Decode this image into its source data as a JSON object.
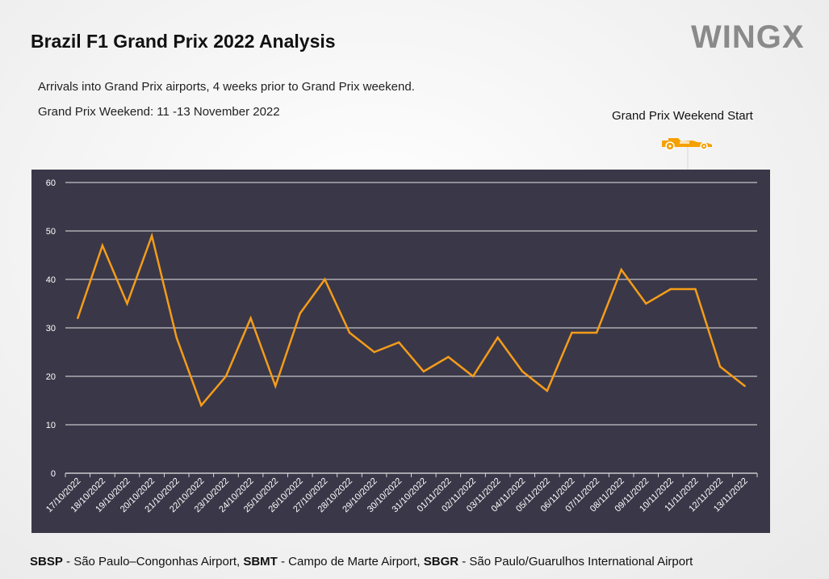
{
  "title": "Brazil F1 Grand Prix 2022 Analysis",
  "logo_text": "WINGX",
  "subtitle_1": "Arrivals into Grand Prix airports, 4 weeks prior to Grand Prix weekend.",
  "subtitle_2": "Grand Prix Weekend: 11 -13 November 2022",
  "annotation": {
    "label": "Grand Prix Weekend Start",
    "icon": "race-car-icon",
    "target_date": "11/11/2022"
  },
  "chart_data": {
    "type": "line",
    "title": "",
    "xlabel": "",
    "ylabel": "",
    "ylim": [
      0,
      60
    ],
    "yticks": [
      0,
      10,
      20,
      30,
      40,
      50,
      60
    ],
    "grid": true,
    "categories": [
      "17/10/2022",
      "18/10/2022",
      "19/10/2022",
      "20/10/2022",
      "21/10/2022",
      "22/10/2022",
      "23/10/2022",
      "24/10/2022",
      "25/10/2022",
      "26/10/2022",
      "27/10/2022",
      "28/10/2022",
      "29/10/2022",
      "30/10/2022",
      "31/10/2022",
      "01/11/2022",
      "02/11/2022",
      "03/11/2022",
      "04/11/2022",
      "05/11/2022",
      "06/11/2022",
      "07/11/2022",
      "08/11/2022",
      "09/11/2022",
      "10/11/2022",
      "11/11/2022",
      "12/11/2022",
      "13/11/2022"
    ],
    "series": [
      {
        "values": [
          32,
          47,
          35,
          49,
          28,
          14,
          20,
          32,
          18,
          33,
          40,
          29,
          25,
          27,
          21,
          24,
          20,
          28,
          21,
          17,
          29,
          29,
          42,
          35,
          38,
          38,
          22,
          18
        ]
      }
    ],
    "colors": {
      "line": "#f59c1a",
      "background": "#3a3848",
      "grid": "#e6e6e6",
      "text": "#ffffff"
    }
  },
  "footer": {
    "code1": "SBSP",
    "name1": " - São Paulo–Congonhas Airport, ",
    "code2": "SBMT",
    "name2": " - Campo de Marte Airport, ",
    "code3": "SBGR",
    "name3": " - São Paulo/Guarulhos International Airport"
  }
}
